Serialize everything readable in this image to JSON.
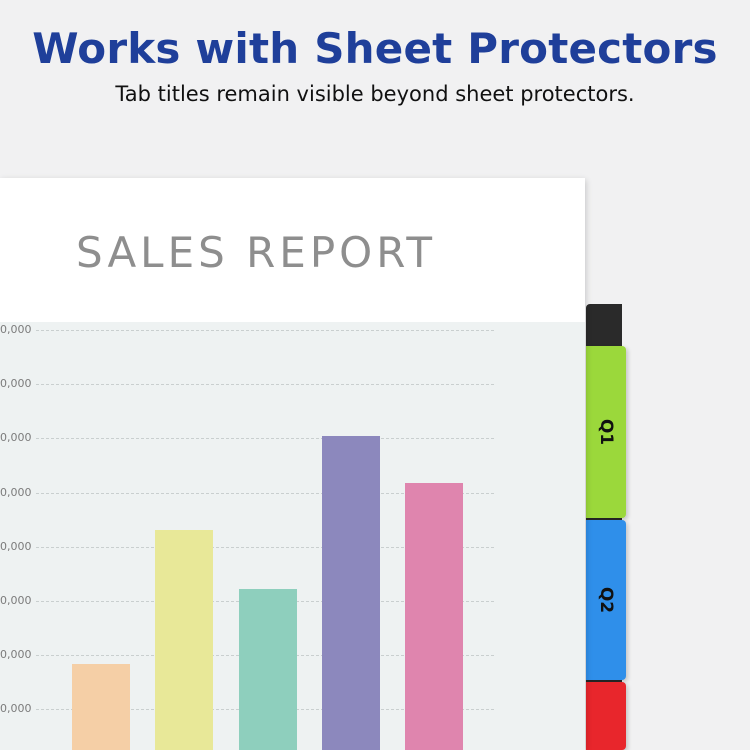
{
  "header": {
    "title": "Works with Sheet Protectors",
    "subtitle": "Tab titles remain visible beyond sheet protectors."
  },
  "report": {
    "title": "SALES REPORT"
  },
  "tabs": [
    {
      "label": "Q1",
      "color": "#9bd83b"
    },
    {
      "label": "Q2",
      "color": "#2f8fea"
    },
    {
      "label": "",
      "color": "#e8262c"
    }
  ],
  "chart_data": {
    "type": "bar",
    "y_tick_labels": [
      "0,000",
      "0,000",
      "0,000",
      "0,000",
      "0,000",
      "0,000",
      "0,000",
      "0,000"
    ],
    "values": [
      0.22,
      0.56,
      0.41,
      0.8,
      0.68
    ],
    "value_note": "relative heights; axis values cropped",
    "colors": [
      "#f5cfa6",
      "#e8e898",
      "#8ecfbd",
      "#8c88bd",
      "#df85ae"
    ],
    "grid": true
  }
}
